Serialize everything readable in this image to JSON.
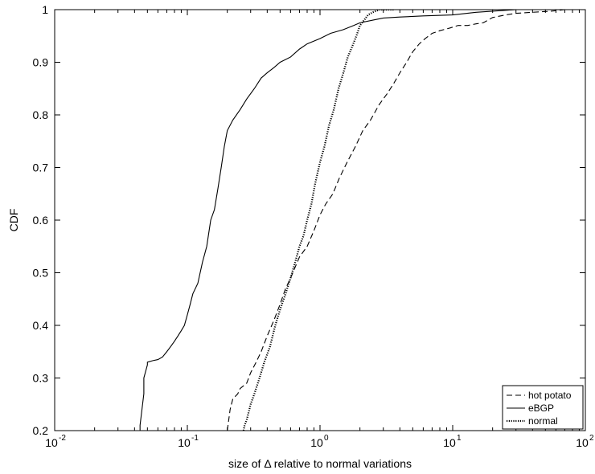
{
  "chart_data": {
    "type": "line",
    "xlabel": "size of Δ relative to normal variations",
    "ylabel": "CDF",
    "xscale": "log",
    "xlim": [
      0.01,
      100
    ],
    "ylim": [
      0.2,
      1
    ],
    "grid": false,
    "legend_position": "bottom-right",
    "x_ticks": [
      0.01,
      0.1,
      1,
      10,
      100
    ],
    "x_tick_labels": [
      {
        "base": "10",
        "exp": "-2"
      },
      {
        "base": "10",
        "exp": "-1"
      },
      {
        "base": "10",
        "exp": "0"
      },
      {
        "base": "10",
        "exp": "1"
      },
      {
        "base": "10",
        "exp": "2"
      }
    ],
    "y_ticks": [
      0.2,
      0.3,
      0.4,
      0.5,
      0.6,
      0.7,
      0.8,
      0.9,
      1
    ],
    "y_tick_labels": [
      "0.2",
      "0.3",
      "0.4",
      "0.5",
      "0.6",
      "0.7",
      "0.8",
      "0.9",
      "1"
    ],
    "series": [
      {
        "name": "hot potato",
        "dash": "dashed",
        "color": "#000000",
        "x": [
          0.2,
          0.205,
          0.21,
          0.22,
          0.24,
          0.25,
          0.28,
          0.3,
          0.33,
          0.36,
          0.4,
          0.45,
          0.5,
          0.55,
          0.6,
          0.7,
          0.8,
          0.9,
          1.0,
          1.1,
          1.25,
          1.4,
          1.6,
          1.85,
          2.1,
          2.4,
          2.8,
          3.2,
          3.6,
          4.0,
          4.5,
          5.0,
          5.6,
          6.2,
          7.0,
          8.0,
          9.5,
          11,
          13,
          15,
          17,
          20,
          25,
          30,
          40,
          55,
          70,
          100
        ],
        "y": [
          0.2,
          0.22,
          0.24,
          0.26,
          0.27,
          0.28,
          0.29,
          0.31,
          0.33,
          0.35,
          0.38,
          0.41,
          0.44,
          0.47,
          0.49,
          0.53,
          0.55,
          0.58,
          0.61,
          0.63,
          0.65,
          0.68,
          0.71,
          0.74,
          0.77,
          0.79,
          0.82,
          0.84,
          0.86,
          0.88,
          0.9,
          0.92,
          0.935,
          0.945,
          0.955,
          0.96,
          0.965,
          0.97,
          0.97,
          0.973,
          0.975,
          0.985,
          0.99,
          0.993,
          0.995,
          0.997,
          1.0,
          1.0
        ]
      },
      {
        "name": "eBGP",
        "dash": "solid",
        "color": "#000000",
        "x": [
          0.044,
          0.044,
          0.047,
          0.047,
          0.05,
          0.05,
          0.055,
          0.06,
          0.065,
          0.07,
          0.075,
          0.08,
          0.085,
          0.09,
          0.095,
          0.1,
          0.105,
          0.11,
          0.12,
          0.13,
          0.14,
          0.15,
          0.16,
          0.17,
          0.18,
          0.19,
          0.2,
          0.22,
          0.25,
          0.28,
          0.32,
          0.36,
          0.4,
          0.45,
          0.5,
          0.6,
          0.7,
          0.8,
          1.0,
          1.2,
          1.5,
          1.8,
          2.0,
          2.5,
          3.0,
          4.0,
          6.0,
          10.0,
          15.0,
          30.0,
          100.0
        ],
        "y": [
          0.2,
          0.21,
          0.27,
          0.3,
          0.325,
          0.33,
          0.333,
          0.335,
          0.34,
          0.35,
          0.36,
          0.37,
          0.38,
          0.39,
          0.4,
          0.42,
          0.44,
          0.46,
          0.48,
          0.52,
          0.55,
          0.6,
          0.62,
          0.66,
          0.7,
          0.74,
          0.77,
          0.79,
          0.81,
          0.83,
          0.85,
          0.87,
          0.88,
          0.89,
          0.9,
          0.91,
          0.925,
          0.935,
          0.945,
          0.955,
          0.962,
          0.97,
          0.975,
          0.98,
          0.984,
          0.986,
          0.988,
          0.99,
          0.995,
          1.0,
          1.0
        ]
      },
      {
        "name": "normal",
        "dash": "dotted",
        "color": "#000000",
        "x": [
          0.265,
          0.27,
          0.28,
          0.3,
          0.32,
          0.35,
          0.38,
          0.42,
          0.46,
          0.5,
          0.55,
          0.6,
          0.65,
          0.7,
          0.75,
          0.8,
          0.86,
          0.92,
          1.0,
          1.08,
          1.17,
          1.27,
          1.38,
          1.5,
          1.62,
          1.75,
          1.88,
          2.0,
          2.15,
          2.3,
          2.5,
          2.8,
          3.2,
          3.6
        ],
        "y": [
          0.2,
          0.21,
          0.22,
          0.25,
          0.27,
          0.3,
          0.33,
          0.36,
          0.4,
          0.43,
          0.46,
          0.49,
          0.52,
          0.55,
          0.57,
          0.6,
          0.63,
          0.67,
          0.71,
          0.74,
          0.78,
          0.81,
          0.85,
          0.88,
          0.91,
          0.93,
          0.95,
          0.97,
          0.98,
          0.99,
          0.995,
          1.0,
          1.0,
          1.0
        ]
      }
    ]
  }
}
